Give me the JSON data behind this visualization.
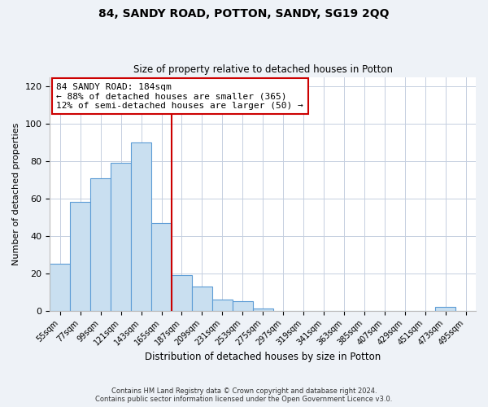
{
  "title": "84, SANDY ROAD, POTTON, SANDY, SG19 2QQ",
  "subtitle": "Size of property relative to detached houses in Potton",
  "xlabel": "Distribution of detached houses by size in Potton",
  "ylabel": "Number of detached properties",
  "bar_labels": [
    "55sqm",
    "77sqm",
    "99sqm",
    "121sqm",
    "143sqm",
    "165sqm",
    "187sqm",
    "209sqm",
    "231sqm",
    "253sqm",
    "275sqm",
    "297sqm",
    "319sqm",
    "341sqm",
    "363sqm",
    "385sqm",
    "407sqm",
    "429sqm",
    "451sqm",
    "473sqm",
    "495sqm"
  ],
  "bar_heights": [
    25,
    58,
    71,
    79,
    90,
    47,
    19,
    13,
    6,
    5,
    1,
    0,
    0,
    0,
    0,
    0,
    0,
    0,
    0,
    2,
    0
  ],
  "bar_color": "#c9dff0",
  "bar_edge_color": "#5b9bd5",
  "vline_x": 6,
  "vline_color": "#cc0000",
  "annotation_line1": "84 SANDY ROAD: 184sqm",
  "annotation_line2": "← 88% of detached houses are smaller (365)",
  "annotation_line3": "12% of semi-detached houses are larger (50) →",
  "ylim": [
    0,
    125
  ],
  "yticks": [
    0,
    20,
    40,
    60,
    80,
    100,
    120
  ],
  "footer_line1": "Contains HM Land Registry data © Crown copyright and database right 2024.",
  "footer_line2": "Contains public sector information licensed under the Open Government Licence v3.0.",
  "background_color": "#eef2f7",
  "plot_background": "#ffffff"
}
